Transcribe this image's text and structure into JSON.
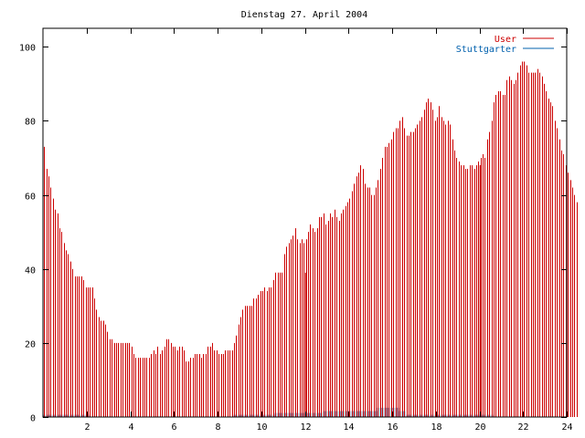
{
  "chart_data": {
    "type": "bar",
    "title": "Dienstag 27. April 2004",
    "xlim": [
      0,
      24
    ],
    "ylim": [
      0,
      105
    ],
    "xticks": [
      2,
      4,
      6,
      8,
      10,
      12,
      14,
      16,
      18,
      20,
      22,
      24
    ],
    "yticks": [
      0,
      20,
      40,
      60,
      80,
      100
    ],
    "legend_position": "top-right",
    "grid": false,
    "bin_hours": 0.1,
    "series": [
      {
        "name": "User",
        "color": "#cc0000",
        "values": [
          73,
          67,
          65,
          62,
          59,
          56,
          55,
          51,
          50,
          47,
          45,
          44,
          42,
          40,
          38,
          38,
          38,
          38,
          37,
          35,
          35,
          35,
          35,
          32,
          29,
          27,
          26,
          26,
          25,
          23,
          21,
          21,
          20,
          20,
          20,
          20,
          20,
          20,
          20,
          20,
          19,
          17,
          16,
          16,
          16,
          16,
          16,
          16,
          16,
          17,
          18,
          17,
          19,
          17,
          18,
          19,
          21,
          21,
          20,
          19,
          19,
          18,
          19,
          19,
          18,
          15,
          15,
          16,
          16,
          17,
          17,
          17,
          16,
          17,
          17,
          19,
          19,
          20,
          18,
          18,
          17,
          17,
          17,
          18,
          18,
          18,
          18,
          20,
          22,
          25,
          27,
          29,
          30,
          30,
          30,
          30,
          32,
          32,
          33,
          34,
          34,
          35,
          34,
          35,
          35,
          37,
          39,
          39,
          39,
          39,
          44,
          46,
          47,
          48,
          49,
          51,
          48,
          47,
          48,
          47,
          48,
          50,
          52,
          51,
          50,
          51,
          54,
          54,
          55,
          52,
          53,
          55,
          54,
          56,
          54,
          53,
          55,
          56,
          57,
          58,
          59,
          61,
          63,
          65,
          66,
          68,
          67,
          63,
          62,
          62,
          60,
          60,
          62,
          64,
          67,
          70,
          73,
          73,
          74,
          75,
          77,
          78,
          78,
          80,
          81,
          78,
          76,
          76,
          77,
          77,
          78,
          79,
          80,
          81,
          83,
          85,
          86,
          85,
          83,
          80,
          81,
          84,
          81,
          80,
          79,
          80,
          79,
          75,
          72,
          70,
          69,
          68,
          68,
          67,
          67,
          68,
          68,
          67,
          68,
          69,
          70,
          71,
          70,
          75,
          77,
          80,
          85,
          87,
          88,
          88,
          87,
          87,
          91,
          92,
          91,
          90,
          91,
          93,
          95,
          96,
          96,
          95,
          93,
          93,
          93,
          93,
          94,
          93,
          92,
          90,
          88,
          86,
          85,
          84,
          80,
          78,
          75,
          72,
          71,
          68,
          66,
          64,
          62,
          60,
          58
        ]
      },
      {
        "name": "Stuttgarter",
        "color": "#0060ad",
        "values": [
          0.6,
          0.6,
          0.6,
          0.6,
          0.6,
          0.6,
          0.6,
          0.6,
          0.6,
          0.6,
          0.6,
          0.6,
          0.6,
          0.6,
          0.6,
          0.6,
          0.6,
          0.6,
          0.6,
          0.6,
          0.6,
          0,
          0,
          0,
          0,
          0,
          0,
          0,
          0,
          0,
          0,
          0,
          0,
          0,
          0,
          0,
          0,
          0,
          0,
          0,
          0,
          0,
          0,
          0,
          0,
          0,
          0,
          0,
          0,
          0,
          0,
          0,
          0,
          0,
          0,
          0,
          0,
          0,
          0,
          0,
          0,
          0,
          0,
          0,
          0,
          0,
          0,
          0,
          0,
          0,
          0,
          0,
          0,
          0,
          0,
          0,
          0,
          0,
          0,
          0,
          0,
          0,
          0,
          0,
          0,
          0,
          0,
          0.6,
          0.6,
          0.6,
          0.6,
          0.6,
          0.6,
          0.6,
          0.6,
          0.6,
          0.6,
          0.6,
          0.6,
          0.6,
          0.6,
          0.6,
          0.6,
          0.6,
          0.6,
          0.6,
          1.1,
          1.1,
          1.1,
          1.1,
          1.1,
          1.1,
          1.1,
          1.1,
          1.1,
          1.1,
          1.1,
          1.1,
          1.1,
          1.1,
          1.1,
          1.1,
          1.1,
          1.1,
          1.1,
          1.1,
          1.1,
          1.1,
          1.6,
          1.6,
          1.6,
          1.6,
          1.6,
          1.6,
          1.6,
          1.6,
          1.6,
          1.6,
          1.6,
          1.6,
          1.6,
          1.6,
          1.6,
          1.6,
          1.6,
          1.6,
          1.6,
          1.6,
          1.6,
          1.6,
          1.6,
          1.6,
          1.6,
          2.5,
          2.5,
          2.5,
          2.5,
          2.5,
          2.5,
          2.5,
          2.5,
          2.5,
          2.5,
          1.6,
          1.6,
          1.6,
          0.6,
          0.6,
          0.6,
          0.6,
          0.6,
          0.6,
          0.6,
          0.6,
          0.6,
          0.6,
          0.6,
          0.6,
          0.6,
          0.6,
          0.6,
          0.6,
          0.6,
          0.6,
          0.6,
          0.6,
          0.6,
          0.6,
          0.6,
          0.6,
          0.6,
          0.6,
          0.6,
          0.6,
          0.6,
          0.6,
          0.6,
          0.6,
          0.6,
          0.6,
          0.6,
          0.6,
          0.6,
          0.6,
          0.6,
          0.6,
          0,
          0,
          0,
          0,
          0,
          0,
          0,
          0,
          0,
          0,
          0,
          0,
          0,
          0,
          0,
          0,
          0,
          0,
          0,
          0,
          0,
          0,
          0,
          0,
          0,
          0,
          0,
          0,
          0,
          0,
          0,
          0,
          0,
          0,
          0,
          0,
          0,
          0,
          0
        ]
      }
    ],
    "markers": [
      {
        "x": 12.05,
        "y": 39,
        "color": "#cc0000"
      },
      {
        "x": 20.05,
        "y": 68,
        "color": "#cc0000"
      }
    ]
  }
}
